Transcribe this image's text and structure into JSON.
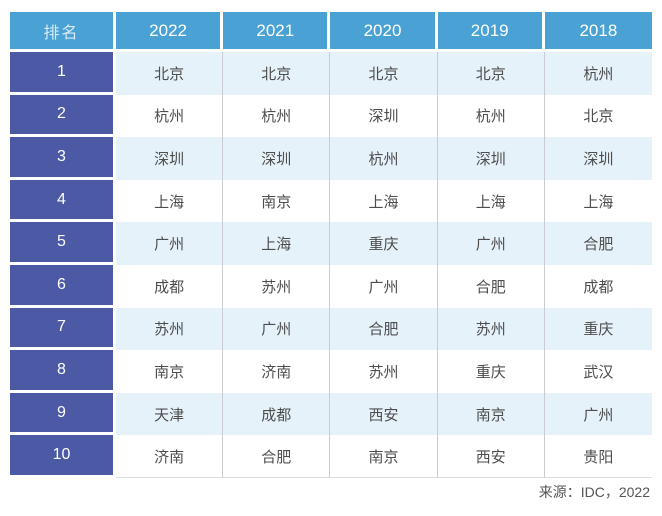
{
  "table": {
    "rank_header": "排名",
    "year_headers": [
      "2022",
      "2021",
      "2020",
      "2019",
      "2018"
    ],
    "rows": [
      {
        "rank": "1",
        "cells": [
          "北京",
          "北京",
          "北京",
          "北京",
          "杭州"
        ]
      },
      {
        "rank": "2",
        "cells": [
          "杭州",
          "杭州",
          "深圳",
          "杭州",
          "北京"
        ]
      },
      {
        "rank": "3",
        "cells": [
          "深圳",
          "深圳",
          "杭州",
          "深圳",
          "深圳"
        ]
      },
      {
        "rank": "4",
        "cells": [
          "上海",
          "南京",
          "上海",
          "上海",
          "上海"
        ]
      },
      {
        "rank": "5",
        "cells": [
          "广州",
          "上海",
          "重庆",
          "广州",
          "合肥"
        ]
      },
      {
        "rank": "6",
        "cells": [
          "成都",
          "苏州",
          "广州",
          "合肥",
          "成都"
        ]
      },
      {
        "rank": "7",
        "cells": [
          "苏州",
          "广州",
          "合肥",
          "苏州",
          "重庆"
        ]
      },
      {
        "rank": "8",
        "cells": [
          "南京",
          "济南",
          "苏州",
          "重庆",
          "武汉"
        ]
      },
      {
        "rank": "9",
        "cells": [
          "天津",
          "成都",
          "西安",
          "南京",
          "广州"
        ]
      },
      {
        "rank": "10",
        "cells": [
          "济南",
          "合肥",
          "南京",
          "西安",
          "贵阳"
        ]
      }
    ]
  },
  "source_note": "来源：IDC，2022",
  "colors": {
    "header_bg": "#4aa2d4",
    "rank_column_bg": "#4c59a4",
    "row_alt_bg": "#e6f2fa",
    "row_bg": "#ffffff",
    "cell_border": "#c9cdd2",
    "data_text": "#4d4d4d",
    "header_text": "#ffffff"
  },
  "chart_data": {
    "type": "table",
    "title": "",
    "columns": [
      "排名",
      "2022",
      "2021",
      "2020",
      "2019",
      "2018"
    ],
    "rows": [
      [
        "1",
        "北京",
        "北京",
        "北京",
        "北京",
        "杭州"
      ],
      [
        "2",
        "杭州",
        "杭州",
        "深圳",
        "杭州",
        "北京"
      ],
      [
        "3",
        "深圳",
        "深圳",
        "杭州",
        "深圳",
        "深圳"
      ],
      [
        "4",
        "上海",
        "南京",
        "上海",
        "上海",
        "上海"
      ],
      [
        "5",
        "广州",
        "上海",
        "重庆",
        "广州",
        "合肥"
      ],
      [
        "6",
        "成都",
        "苏州",
        "广州",
        "合肥",
        "成都"
      ],
      [
        "7",
        "苏州",
        "广州",
        "合肥",
        "苏州",
        "重庆"
      ],
      [
        "8",
        "南京",
        "济南",
        "苏州",
        "重庆",
        "武汉"
      ],
      [
        "9",
        "天津",
        "成都",
        "西安",
        "南京",
        "广州"
      ],
      [
        "10",
        "济南",
        "合肥",
        "南京",
        "西安",
        "贵阳"
      ]
    ],
    "source": "来源：IDC，2022"
  }
}
